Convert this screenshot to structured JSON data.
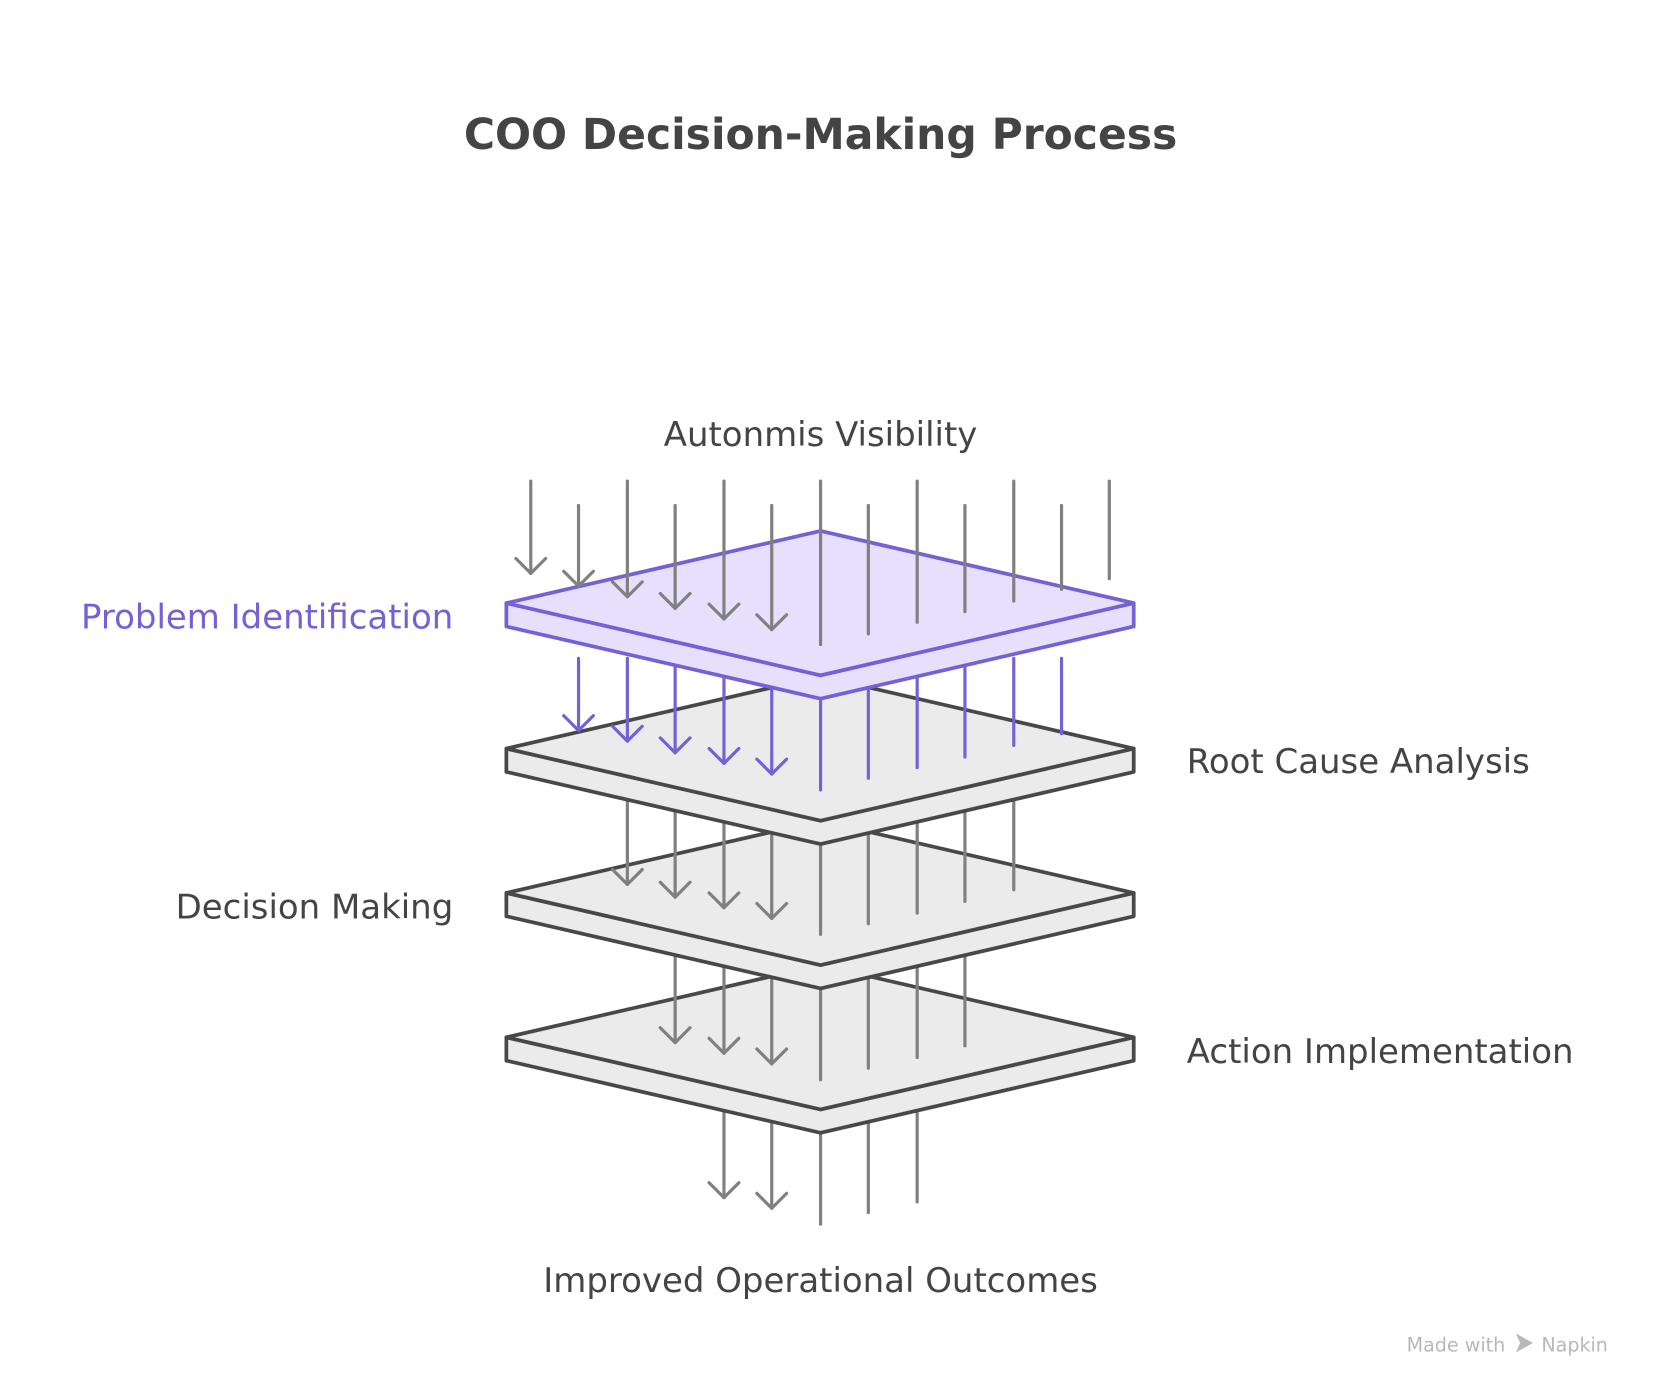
{
  "title": "COO Decision-Making Process",
  "top_label": "Autonmis Visibility",
  "layers": [
    {
      "label": "Problem Identification",
      "side": "left",
      "highlighted": true
    },
    {
      "label": "Root Cause Analysis",
      "side": "right",
      "highlighted": false
    },
    {
      "label": "Decision Making",
      "side": "left",
      "highlighted": false
    },
    {
      "label": "Action Implementation",
      "side": "right",
      "highlighted": false
    }
  ],
  "bottom_label": "Improved Operational Outcomes",
  "footer": {
    "made_with": "Made with",
    "brand": "Napkin",
    "icon": "napkin-logo-icon"
  },
  "colors": {
    "title": "#444444",
    "highlight_stroke": "#7560d6",
    "highlight_fill": "#e6e0fd",
    "plate_stroke": "#484848",
    "plate_fill": "#ebebeb",
    "arrow": "#808080",
    "footer": "#b8b8b8"
  }
}
